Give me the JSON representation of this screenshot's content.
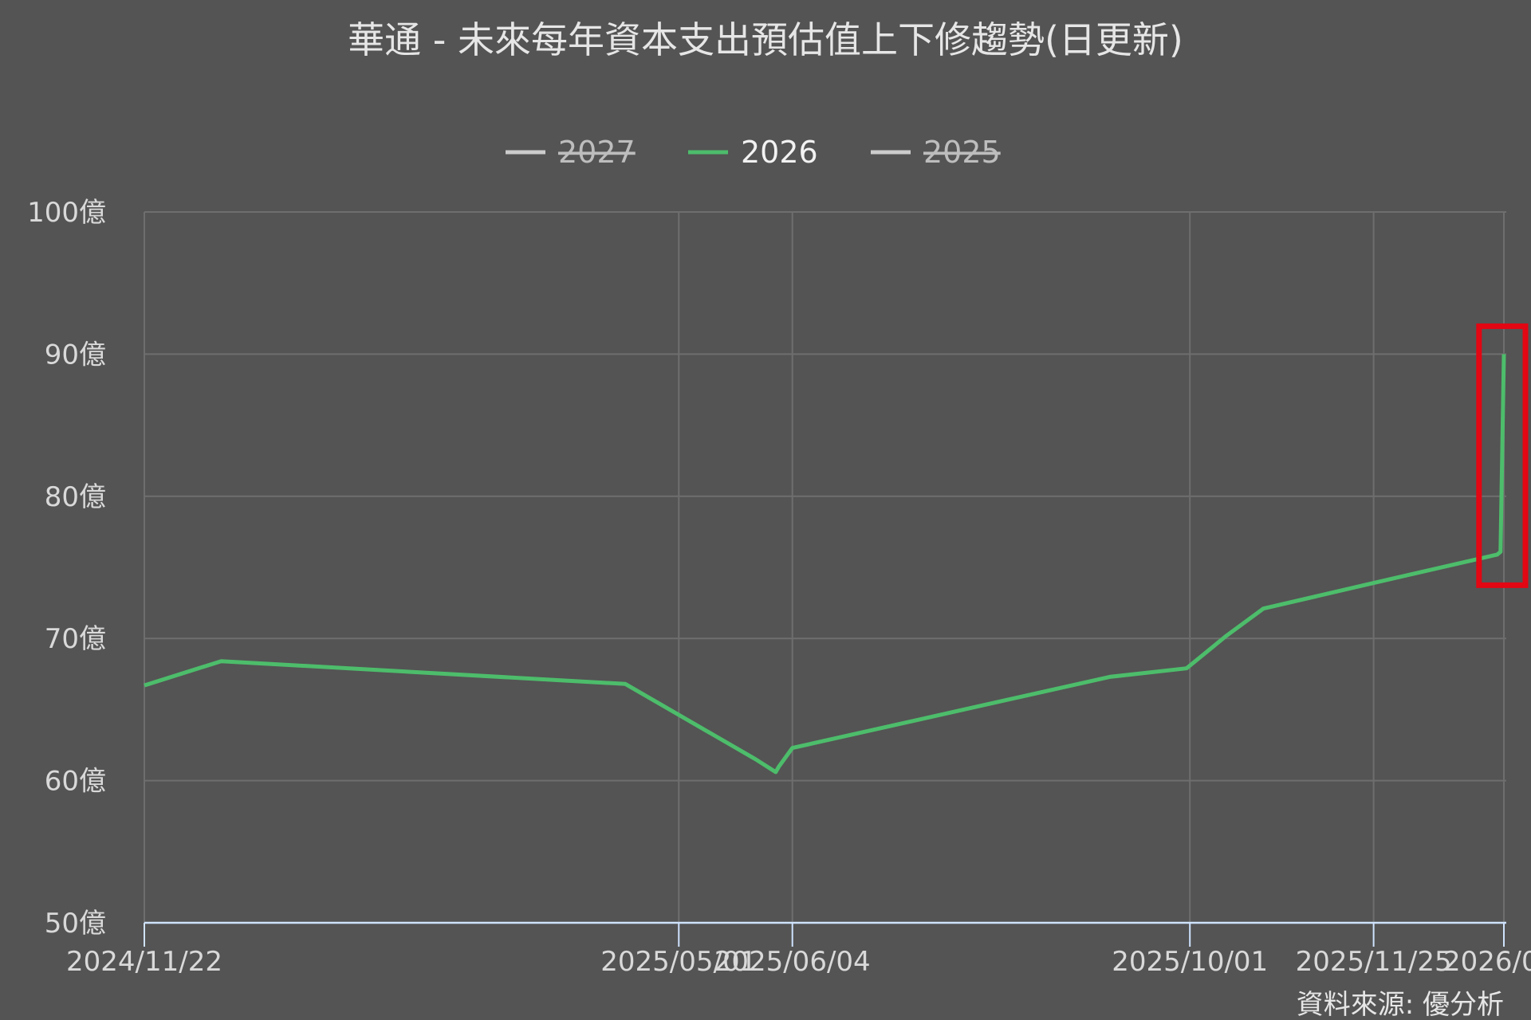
{
  "chart_data": {
    "type": "line",
    "title": "華通 - 未來每年資本支出預估值上下修趨勢(日更新)",
    "source": "資料來源: 優分析",
    "ylim": [
      50,
      100
    ],
    "y_ticks": [
      "50億",
      "60億",
      "70億",
      "80億",
      "90億",
      "100億"
    ],
    "x_ticks": [
      "2024/11/22",
      "2025/05/01",
      "2025/06/04",
      "2025/10/01",
      "2025/11/25",
      "2026/0..."
    ],
    "grid": true,
    "legend_position": "top-center",
    "series": [
      {
        "name": "2027",
        "color": "#cccccc",
        "visible": false,
        "points": []
      },
      {
        "name": "2026",
        "color": "#4dbd6b",
        "visible": true,
        "points": [
          {
            "x": "2024-11-22",
            "y": 66.7
          },
          {
            "x": "2024-12-15",
            "y": 68.4
          },
          {
            "x": "2025-04-15",
            "y": 66.8
          },
          {
            "x": "2025-05-10",
            "y": 63.4
          },
          {
            "x": "2025-05-24",
            "y": 61.5
          },
          {
            "x": "2025-05-30",
            "y": 60.6
          },
          {
            "x": "2025-05-31",
            "y": 61.0
          },
          {
            "x": "2025-06-04",
            "y": 62.3
          },
          {
            "x": "2025-09-07",
            "y": 67.3
          },
          {
            "x": "2025-09-30",
            "y": 67.9
          },
          {
            "x": "2025-10-12",
            "y": 70.2
          },
          {
            "x": "2025-10-23",
            "y": 72.1
          },
          {
            "x": "2025-11-25",
            "y": 73.9
          },
          {
            "x": "2026-01-01",
            "y": 75.9
          },
          {
            "x": "2026-01-02",
            "y": 76.1
          },
          {
            "x": "2026-01-03",
            "y": 90.0
          }
        ]
      },
      {
        "name": "2025",
        "color": "#cccccc",
        "visible": false,
        "points": []
      }
    ],
    "annotation_color": "#e30613"
  }
}
